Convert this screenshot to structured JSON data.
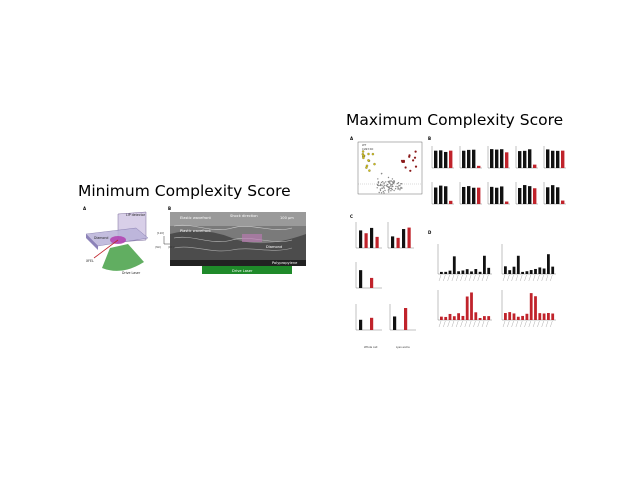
{
  "titles": {
    "min": "Minimum Complexity Score",
    "max": "Maximum Complexity Score"
  },
  "min_figure": {
    "panel_a": {
      "letter": "A",
      "labels": {
        "lip_detector": "LIP detector",
        "diamond": "Diamond",
        "xfel": "XFEL",
        "drive_laser": "Drive Laser"
      }
    },
    "panel_b": {
      "letter": "B",
      "labels": {
        "elastic_wavefront": "Elastic wavefront",
        "shock_direction": "Shock direction",
        "plastic_wavefront": "Plastic wavefront",
        "scale": "100 µm",
        "diamond": "Diamond",
        "polypropylene": "Polypropylene",
        "drive_laser": "Drive Laser",
        "axis_110": "[110]",
        "axis_hkl": "(hkl)",
        "axis_001": "(001)"
      }
    }
  },
  "max_figure": {
    "panels": [
      "A",
      "B",
      "C",
      "D"
    ],
    "legend": {
      "wt": "WT",
      "ko": "CLN3 KO"
    },
    "group_labels": [
      "Whole cell",
      "Lyso-some"
    ],
    "colors": {
      "wt": "#111111",
      "ko": "#c0232b",
      "volcano_up": "#8b1a1a",
      "volcano_hit": "#d4c21a"
    }
  }
}
